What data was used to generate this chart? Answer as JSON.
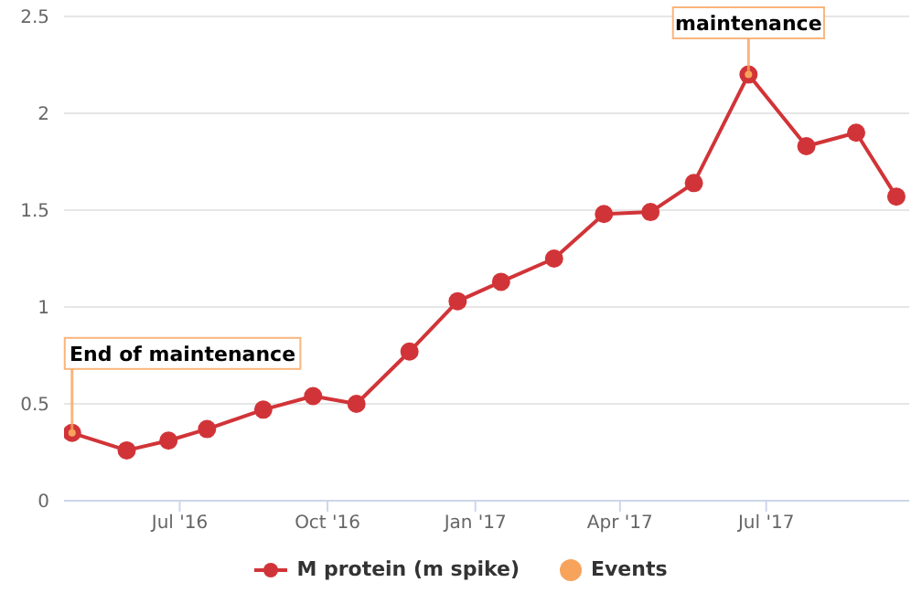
{
  "chart_data": {
    "type": "line",
    "x": [
      "2016-04-25",
      "2016-05-29",
      "2016-06-24",
      "2016-07-18",
      "2016-08-22",
      "2016-09-22",
      "2016-10-19",
      "2016-11-21",
      "2016-12-21",
      "2017-01-17",
      "2017-02-19",
      "2017-03-22",
      "2017-04-20",
      "2017-05-17",
      "2017-06-20",
      "2017-07-26",
      "2017-08-26",
      "2017-09-20"
    ],
    "series": [
      {
        "name": "M protein (m spike)",
        "color": "#d13438",
        "values": [
          0.35,
          0.26,
          0.31,
          0.37,
          0.47,
          0.54,
          0.5,
          0.77,
          1.03,
          1.13,
          1.25,
          1.48,
          1.49,
          1.64,
          2.2,
          1.83,
          1.9,
          1.57
        ]
      },
      {
        "name": "Events",
        "type": "scatter",
        "color": "#f7a35c",
        "x": [
          "2016-04-25",
          "2017-06-20"
        ],
        "values": [
          0.35,
          2.2
        ]
      }
    ],
    "annotations": [
      {
        "text": "End of maintenance",
        "x": "2016-04-25",
        "y": 0.35
      },
      {
        "text": "maintenance",
        "x": "2017-06-20",
        "y": 2.2
      }
    ],
    "xlim": [
      "2016-04-20",
      "2017-09-28"
    ],
    "xticks": [
      {
        "value": "2016-07-01",
        "label": "Jul '16"
      },
      {
        "value": "2016-10-01",
        "label": "Oct '16"
      },
      {
        "value": "2017-01-01",
        "label": "Jan '17"
      },
      {
        "value": "2017-04-01",
        "label": "Apr '17"
      },
      {
        "value": "2017-07-01",
        "label": "Jul '17"
      }
    ],
    "ylim": [
      0,
      2.5
    ],
    "yticks": [
      0,
      0.5,
      1,
      1.5,
      2,
      2.5
    ],
    "grid": "y",
    "legend": "bottom",
    "marker": "circle",
    "line_style": "solid"
  }
}
